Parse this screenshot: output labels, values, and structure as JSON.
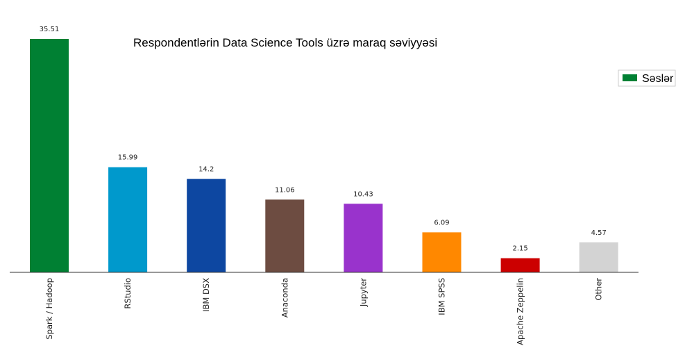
{
  "chart_data": {
    "type": "bar",
    "title": "Respondentlərin Data Science Tools üzrə maraq səviyyəsi",
    "categories": [
      "Spark / Hadoop",
      "RStudio",
      "IBM DSX",
      "Anaconda",
      "Jupyter",
      "IBM SPSS",
      "Apache Zeppelin",
      "Other"
    ],
    "series": [
      {
        "name": "Səslər",
        "values": [
          35.51,
          15.99,
          14.2,
          11.06,
          10.43,
          6.09,
          2.15,
          4.57
        ],
        "value_labels": [
          "35.51",
          "15.99",
          "14.2",
          "11.06",
          "10.43",
          "6.09",
          "2.15",
          "4.57"
        ],
        "colors": [
          "#008033",
          "#0099cc",
          "#0d47a1",
          "#6d4c41",
          "#9933cc",
          "#ff8800",
          "#cc0000",
          "#d3d3d3"
        ]
      }
    ],
    "legend": {
      "position": "top-right",
      "color": "#008033"
    },
    "ylim": [
      0,
      35.51
    ],
    "xlabel": "",
    "ylabel": "",
    "grid": false,
    "x_tick_rotation": "vertical"
  }
}
